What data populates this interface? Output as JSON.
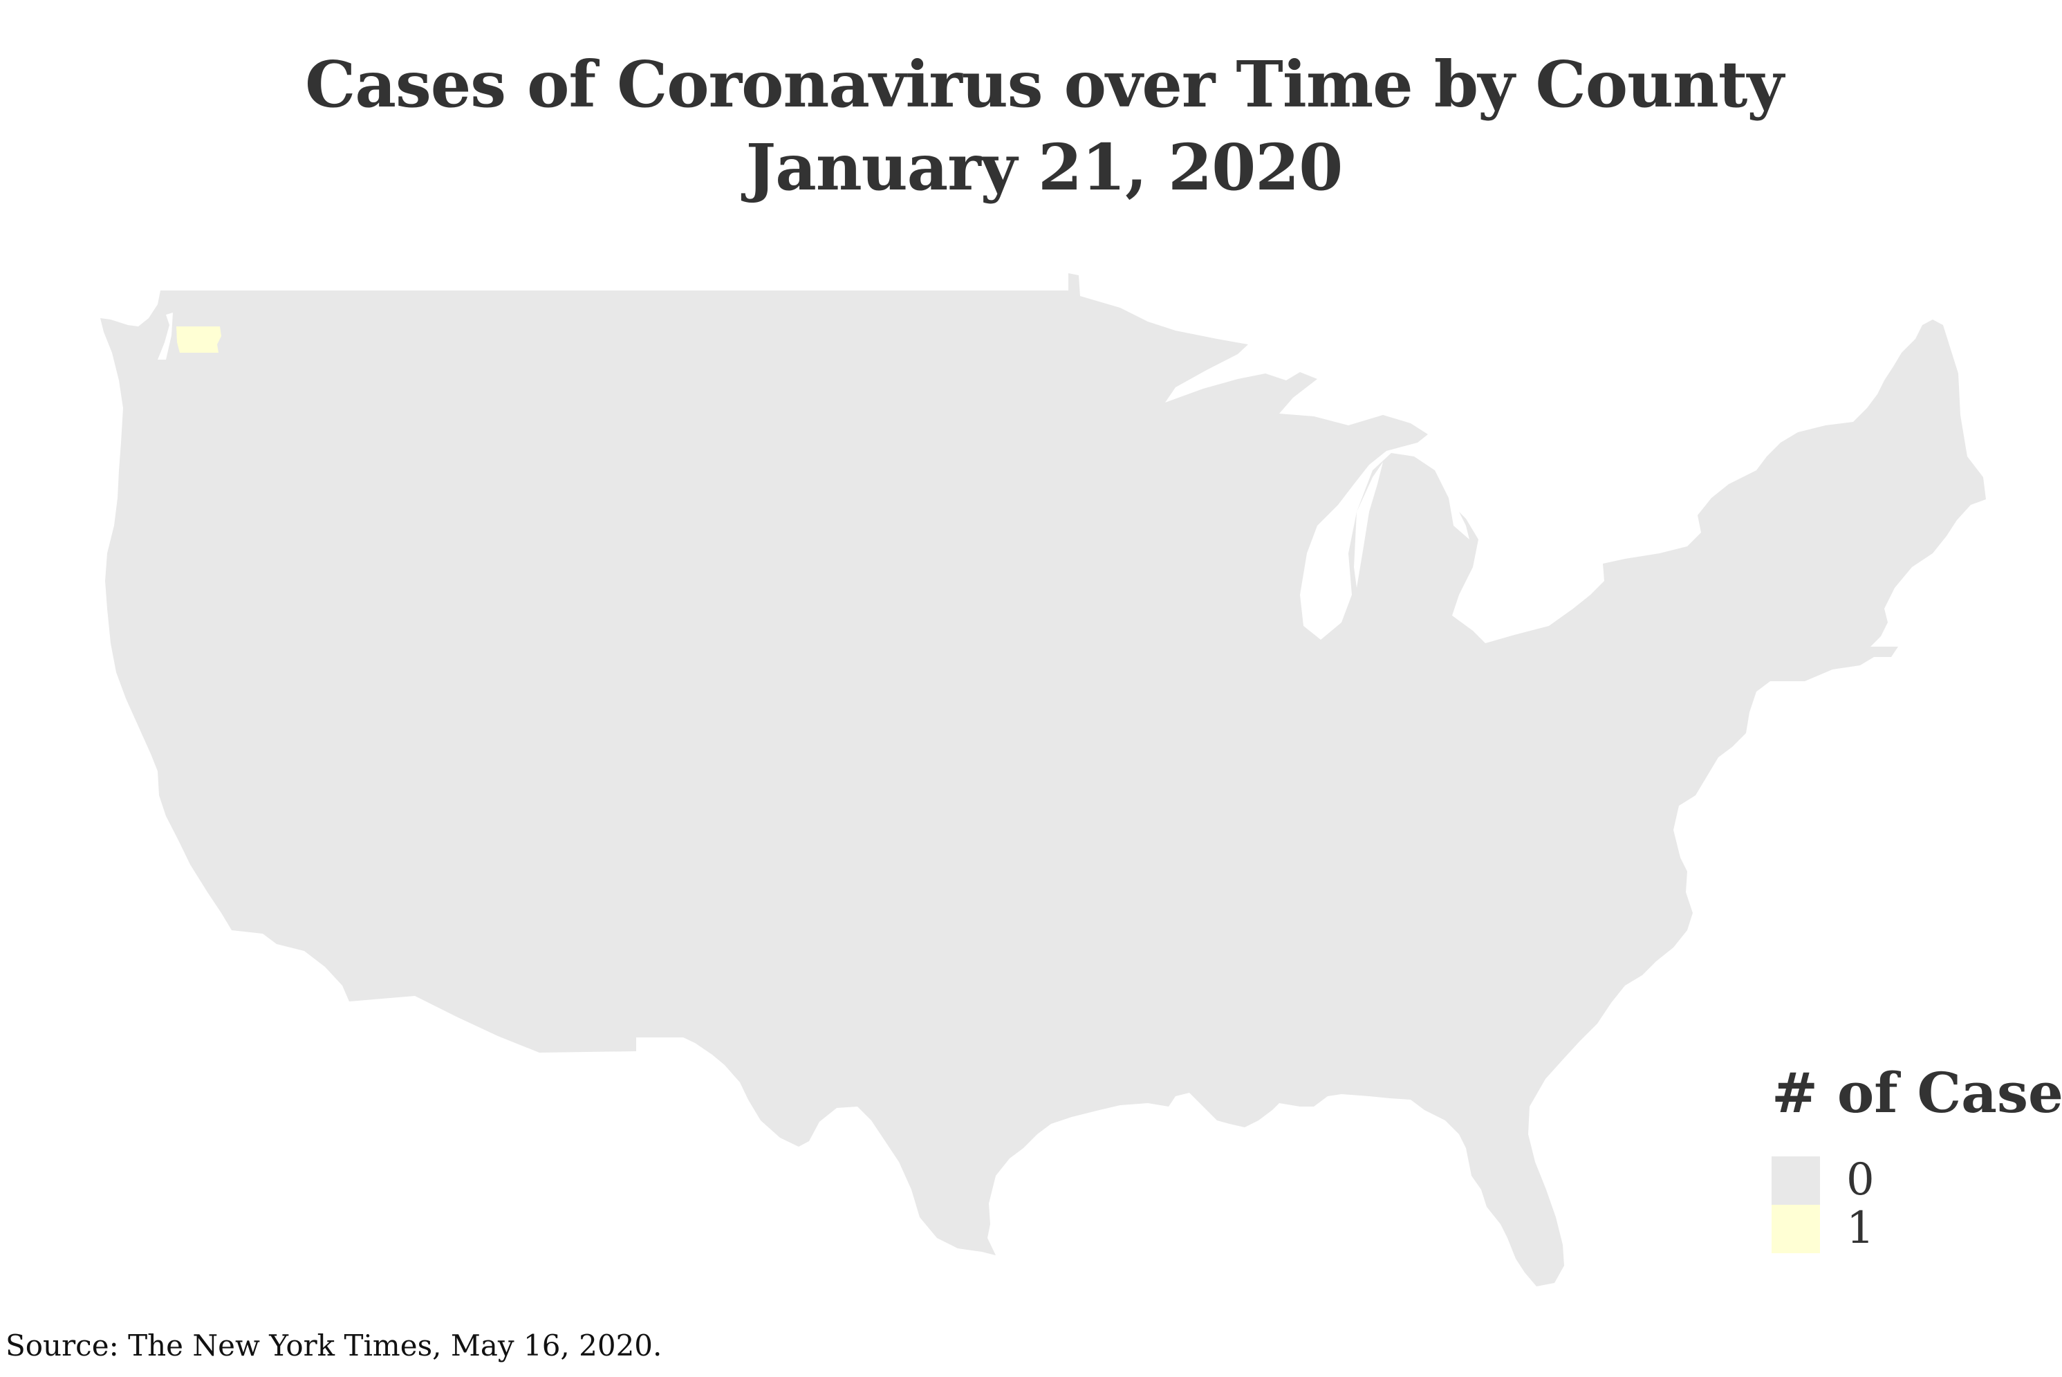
{
  "title": {
    "line1": "Cases of Coronavirus over Time by County",
    "line2": "January 21, 2020"
  },
  "map": {
    "region": "United States (contiguous), county level",
    "highlighted_counties": [
      {
        "state": "Washington",
        "county": "Snohomish",
        "cases": 1
      }
    ],
    "default_cases": 0
  },
  "legend": {
    "title": "# of Cases",
    "items": [
      {
        "label": "0",
        "color": "#e8e8e8"
      },
      {
        "label": "1",
        "color": "#ffffd4"
      }
    ]
  },
  "colors": {
    "land": "#e8e8e8",
    "highlight": "#ffffd4",
    "background": "#ffffff",
    "text": "#333333"
  },
  "source": "Source: The New York Times, May 16, 2020."
}
